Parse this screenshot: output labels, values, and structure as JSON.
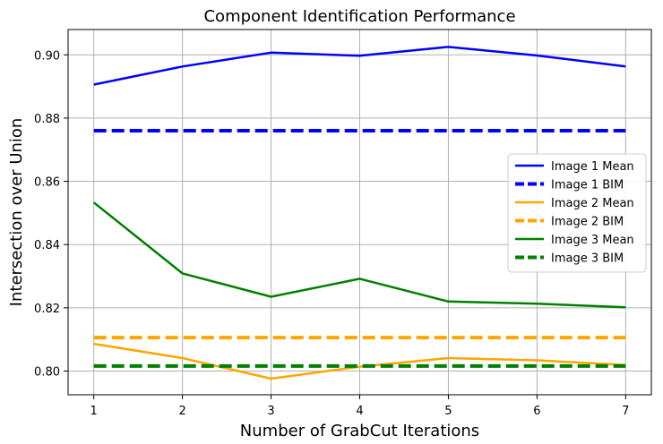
{
  "chart_data": {
    "type": "line",
    "title": "Component Identification Performance",
    "xlabel": "Number of GrabCut Iterations",
    "ylabel": "Intersection over Union",
    "x": [
      1,
      2,
      3,
      4,
      5,
      6,
      7
    ],
    "xlim": [
      0.71,
      7.29
    ],
    "ylim": [
      0.7925,
      0.908
    ],
    "xticks": [
      "1",
      "2",
      "3",
      "4",
      "5",
      "6",
      "7"
    ],
    "yticks": [
      0.8,
      0.82,
      0.84,
      0.86,
      0.88,
      0.9
    ],
    "ytick_labels": [
      "0.80",
      "0.82",
      "0.84",
      "0.86",
      "0.88",
      "0.90"
    ],
    "grid": true,
    "legend_position": "center-right",
    "series": [
      {
        "name": "Image 1 Mean",
        "color": "#0000ff",
        "style": "solid",
        "values": [
          0.8906,
          0.8963,
          0.9007,
          0.8997,
          0.9025,
          0.8998,
          0.8963
        ]
      },
      {
        "name": "Image 1 BIM",
        "color": "#0000ff",
        "style": "dashed",
        "values": [
          0.876,
          0.876,
          0.876,
          0.876,
          0.876,
          0.876,
          0.876
        ]
      },
      {
        "name": "Image 2 Mean",
        "color": "#ffa500",
        "style": "solid",
        "values": [
          0.8086,
          0.8041,
          0.7976,
          0.8014,
          0.8041,
          0.8034,
          0.8019
        ]
      },
      {
        "name": "Image 2 BIM",
        "color": "#ffa500",
        "style": "dashed",
        "values": [
          0.8106,
          0.8106,
          0.8106,
          0.8106,
          0.8106,
          0.8106,
          0.8106
        ]
      },
      {
        "name": "Image 3 Mean",
        "color": "#008000",
        "style": "solid",
        "values": [
          0.8533,
          0.8309,
          0.8235,
          0.8292,
          0.822,
          0.8213,
          0.8202
        ]
      },
      {
        "name": "Image 3 BIM",
        "color": "#008000",
        "style": "dashed",
        "values": [
          0.8016,
          0.8016,
          0.8016,
          0.8016,
          0.8016,
          0.8016,
          0.8016
        ]
      }
    ]
  }
}
